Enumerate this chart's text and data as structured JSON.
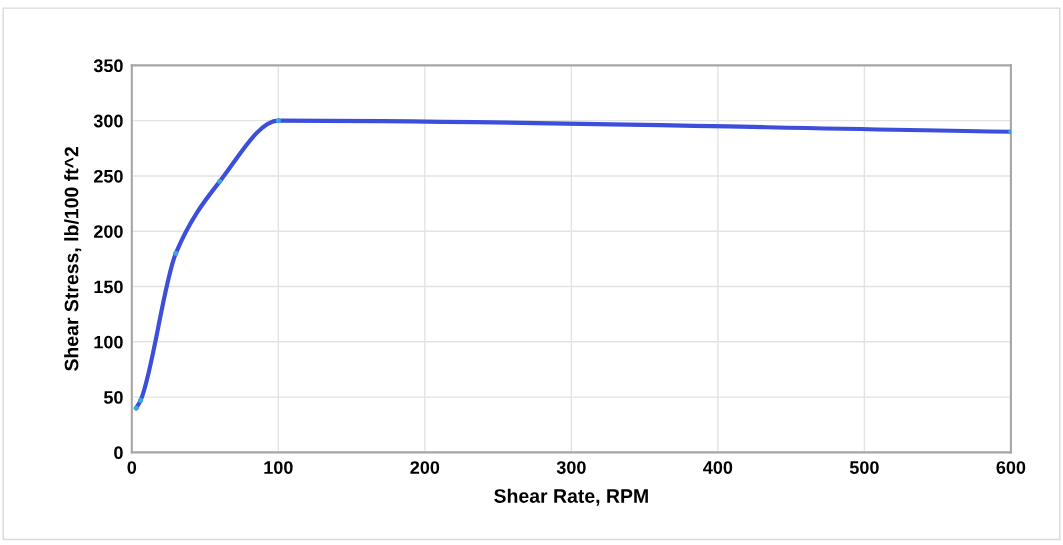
{
  "chart_data": {
    "type": "line",
    "xlabel": "Shear Rate, RPM",
    "ylabel": "Shear Stress, lb/100 ft^2",
    "x": [
      3,
      6,
      30,
      60,
      100,
      600
    ],
    "series": [
      {
        "color": "#3b4fdc",
        "values": [
          40,
          47,
          180,
          245,
          300,
          290
        ]
      }
    ],
    "marker": "circle",
    "line_style": "solid",
    "xlim": [
      0,
      600
    ],
    "xticks": [
      0,
      100,
      200,
      300,
      400,
      500,
      600
    ],
    "ylim": [
      0,
      350
    ],
    "yticks": [
      0,
      50,
      100,
      150,
      200,
      250,
      300,
      350
    ],
    "grid": true,
    "legend": false
  }
}
